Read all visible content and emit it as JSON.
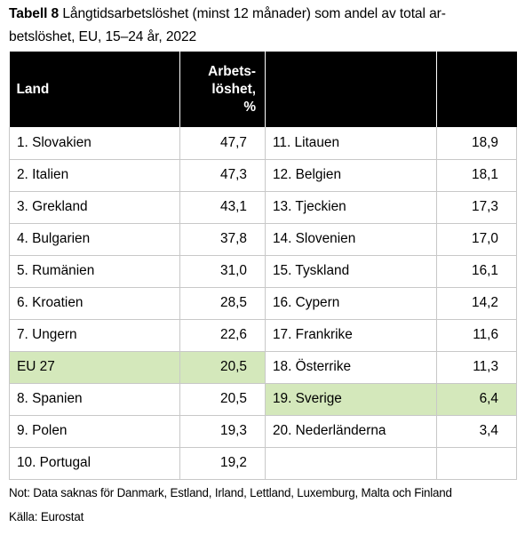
{
  "title": {
    "bold": "Tabell 8",
    "line1": " Långtidsarbetslöshet (minst 12 månader) som andel av total ar-",
    "line2": "betslöshet, EU, 15–24 år, 2022"
  },
  "table": {
    "headers": {
      "land": "Land",
      "value_line1": "Arbets-",
      "value_line2": "löshet,",
      "value_line3": "%"
    },
    "highlight_color": "#d4e8bb",
    "header_color": "#000000",
    "rows": [
      {
        "left_name": "1. Slovakien",
        "left_value": "47,7",
        "right_name": "11. Litauen",
        "right_value": "18,9"
      },
      {
        "left_name": "2. Italien",
        "left_value": "47,3",
        "right_name": "12. Belgien",
        "right_value": "18,1"
      },
      {
        "left_name": "3. Grekland",
        "left_value": "43,1",
        "right_name": "13. Tjeckien",
        "right_value": "17,3"
      },
      {
        "left_name": "4. Bulgarien",
        "left_value": "37,8",
        "right_name": "14. Slovenien",
        "right_value": "17,0"
      },
      {
        "left_name": "5. Rumänien",
        "left_value": "31,0",
        "right_name": "15. Tyskland",
        "right_value": "16,1"
      },
      {
        "left_name": "6. Kroatien",
        "left_value": "28,5",
        "right_name": "16. Cypern",
        "right_value": "14,2"
      },
      {
        "left_name": "7. Ungern",
        "left_value": "22,6",
        "right_name": "17. Frankrike",
        "right_value": "11,6"
      },
      {
        "left_name": "EU 27",
        "left_value": "20,5",
        "right_name": "18. Österrike",
        "right_value": "11,3"
      },
      {
        "left_name": "8. Spanien",
        "left_value": "20,5",
        "right_name": "19. Sverige",
        "right_value": "6,4"
      },
      {
        "left_name": "9. Polen",
        "left_value": "19,3",
        "right_name": "20. Nederländerna",
        "right_value": "3,4"
      },
      {
        "left_name": "10. Portugal",
        "left_value": "19,2",
        "right_name": "",
        "right_value": ""
      }
    ]
  },
  "notes": {
    "note": "Not: Data saknas för Danmark, Estland, Irland, Lettland, Luxemburg, Malta och Finland",
    "source": "Källa: Eurostat"
  }
}
